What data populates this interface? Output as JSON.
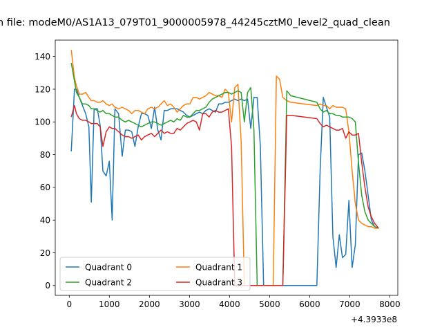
{
  "chart_data": {
    "type": "line",
    "title": "n file: modeM0/AS1A13_079T01_9000005978_44245cztM0_level2_quad_clean",
    "xlabel": "",
    "ylabel": "",
    "x_offset_label": "+4.3933e8",
    "xlim": [
      -350,
      8200
    ],
    "ylim": [
      -6,
      150
    ],
    "x_ticks": [
      0,
      1000,
      2000,
      3000,
      4000,
      5000,
      6000,
      7000,
      8000
    ],
    "y_ticks": [
      0,
      20,
      40,
      60,
      80,
      100,
      120,
      140
    ],
    "grid": false,
    "legend": {
      "placement": "lower-left",
      "columns": 2
    },
    "x": [
      50,
      130,
      180,
      250,
      330,
      410,
      490,
      550,
      620,
      700,
      770,
      840,
      920,
      1000,
      1070,
      1140,
      1230,
      1320,
      1400,
      1480,
      1560,
      1640,
      1720,
      1800,
      1880,
      1960,
      2050,
      2130,
      2210,
      2290,
      2370,
      2450,
      2530,
      2610,
      2690,
      2770,
      2850,
      2930,
      3010,
      3090,
      3170,
      3250,
      3330,
      3410,
      3490,
      3570,
      3650,
      3730,
      3810,
      3890,
      3970,
      4050,
      4130,
      4210,
      4290,
      4370,
      4450,
      4530,
      4610,
      4690,
      4770,
      4850,
      4930,
      5010,
      5090,
      5170,
      5250,
      5330,
      5430,
      5530,
      6180,
      6260,
      6340,
      6420,
      6500,
      6580,
      6660,
      6740,
      6820,
      6900,
      6980,
      7060,
      7140,
      7220,
      7300,
      7380,
      7460,
      7540,
      7620,
      7720
    ],
    "series": [
      {
        "name": "Quadrant 0",
        "color": "#1f77b4",
        "values": [
          82,
          120,
          120,
          115,
          110,
          105,
          97,
          51,
          108,
          108,
          98,
          70,
          67,
          76,
          40,
          108,
          105,
          79,
          95,
          95,
          94,
          85,
          97,
          105,
          105,
          104,
          96,
          109,
          95,
          89,
          107,
          107,
          108,
          108,
          108,
          107,
          106,
          104,
          103,
          104,
          105,
          106,
          105,
          107,
          108,
          107,
          106,
          111,
          111,
          112,
          112,
          113,
          114,
          113,
          114,
          113,
          114,
          96,
          115,
          115,
          85,
          0,
          0,
          0,
          0,
          0,
          0,
          0,
          0,
          0,
          0,
          70,
          115,
          109,
          103,
          30,
          11,
          31,
          17,
          19,
          52,
          11,
          25,
          80,
          81,
          70,
          55,
          40,
          36,
          35
        ]
      },
      {
        "name": "Quadrant 1",
        "color": "#ff7f0e",
        "values": [
          144,
          127,
          122,
          117,
          117,
          118,
          115,
          113,
          113,
          112,
          112,
          113,
          111,
          110,
          111,
          109,
          108,
          109,
          108,
          107,
          105,
          107,
          107,
          106,
          105,
          108,
          109,
          108,
          109,
          111,
          113,
          110,
          111,
          109,
          106,
          108,
          110,
          111,
          111,
          115,
          115,
          114,
          115,
          116,
          118,
          117,
          116,
          116,
          115,
          120,
          118,
          100,
          121,
          123,
          88,
          0,
          0,
          0,
          0,
          0,
          0,
          0,
          0,
          0,
          0,
          128,
          126,
          115,
          113,
          112,
          110,
          111,
          110,
          110,
          108,
          110,
          109,
          109,
          109,
          108,
          94,
          70,
          50,
          40,
          38,
          37,
          36,
          36,
          35,
          35
        ]
      },
      {
        "name": "Quadrant 2",
        "color": "#2ca02c",
        "values": [
          136,
          125,
          118,
          115,
          111,
          111,
          110,
          108,
          108,
          107,
          106,
          107,
          105,
          105,
          104,
          103,
          103,
          101,
          100,
          101,
          100,
          99,
          98,
          97,
          98,
          99,
          100,
          100,
          99,
          98,
          99,
          100,
          101,
          100,
          102,
          101,
          104,
          103,
          103,
          105,
          107,
          107,
          108,
          109,
          112,
          114,
          115,
          116,
          117,
          118,
          118,
          117,
          118,
          119,
          118,
          100,
          118,
          121,
          95,
          0,
          0,
          0,
          0,
          0,
          0,
          0,
          0,
          0,
          119,
          116,
          112,
          108,
          106,
          107,
          105,
          105,
          104,
          104,
          103,
          103,
          103,
          102,
          100,
          75,
          55,
          45,
          40,
          38,
          36,
          35
        ]
      },
      {
        "name": "Quadrant 3",
        "color": "#d62728",
        "values": [
          103,
          110,
          105,
          102,
          101,
          101,
          100,
          99,
          99,
          99,
          97,
          85,
          94,
          97,
          96,
          96,
          94,
          92,
          91,
          91,
          90,
          91,
          92,
          89,
          91,
          92,
          93,
          91,
          93,
          95,
          93,
          94,
          93,
          93,
          96,
          95,
          97,
          99,
          100,
          101,
          100,
          95,
          105,
          105,
          103,
          106,
          107,
          106,
          106,
          107,
          108,
          85,
          0,
          0,
          0,
          0,
          0,
          0,
          0,
          0,
          0,
          0,
          0,
          0,
          0,
          0,
          0,
          0,
          104,
          104,
          102,
          99,
          97,
          98,
          97,
          96,
          95,
          95,
          96,
          90,
          94,
          92,
          92,
          93,
          75,
          60,
          48,
          42,
          38,
          35
        ]
      }
    ]
  }
}
